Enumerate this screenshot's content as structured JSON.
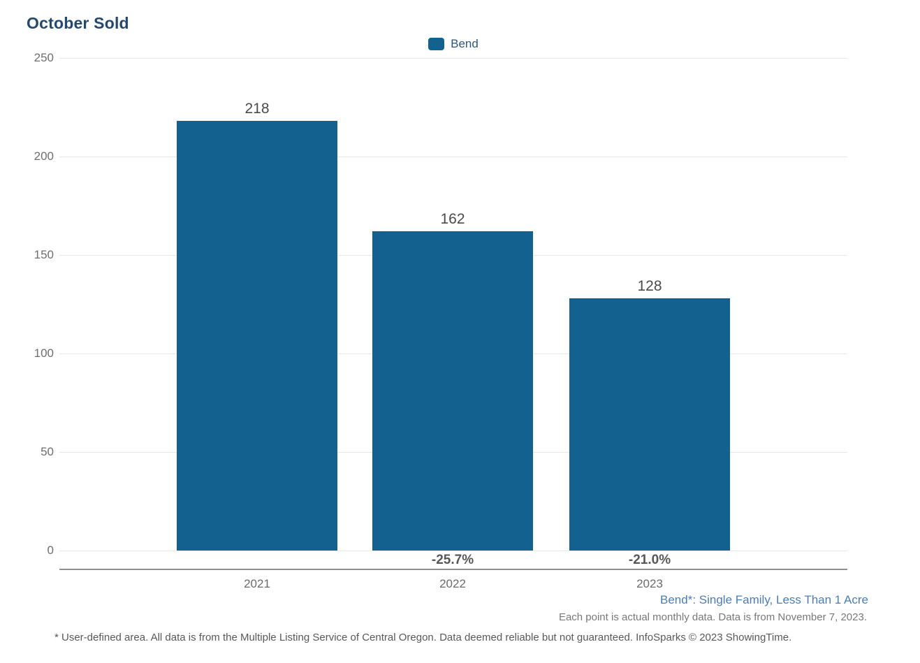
{
  "title": "October Sold",
  "legend": {
    "items": [
      {
        "label": "Bend",
        "color": "#12618f"
      }
    ]
  },
  "chart_data": {
    "type": "bar",
    "title": "October Sold",
    "categories": [
      "2021",
      "2022",
      "2023"
    ],
    "series": [
      {
        "name": "Bend",
        "values": [
          218,
          162,
          128
        ]
      }
    ],
    "bar_value_labels": [
      "218",
      "162",
      "128"
    ],
    "pct_change_labels": [
      "",
      "-25.7%",
      "-21.0%"
    ],
    "yticks": [
      0,
      50,
      100,
      150,
      200,
      250
    ],
    "ylim": [
      0,
      250
    ],
    "xlabel": "",
    "ylabel": "",
    "grid": true,
    "legend_position": "top-center",
    "bar_color": "#12618f"
  },
  "annotations": {
    "series_note": "Bend*: Single Family, Less Than 1 Acre",
    "data_note": "Each point is actual monthly data. Data is from November 7, 2023.",
    "footnote": "* User-defined area. All data is from the Multiple Listing Service of Central Oregon. Data deemed reliable but not guaranteed. InfoSparks © 2023 ShowingTime."
  }
}
